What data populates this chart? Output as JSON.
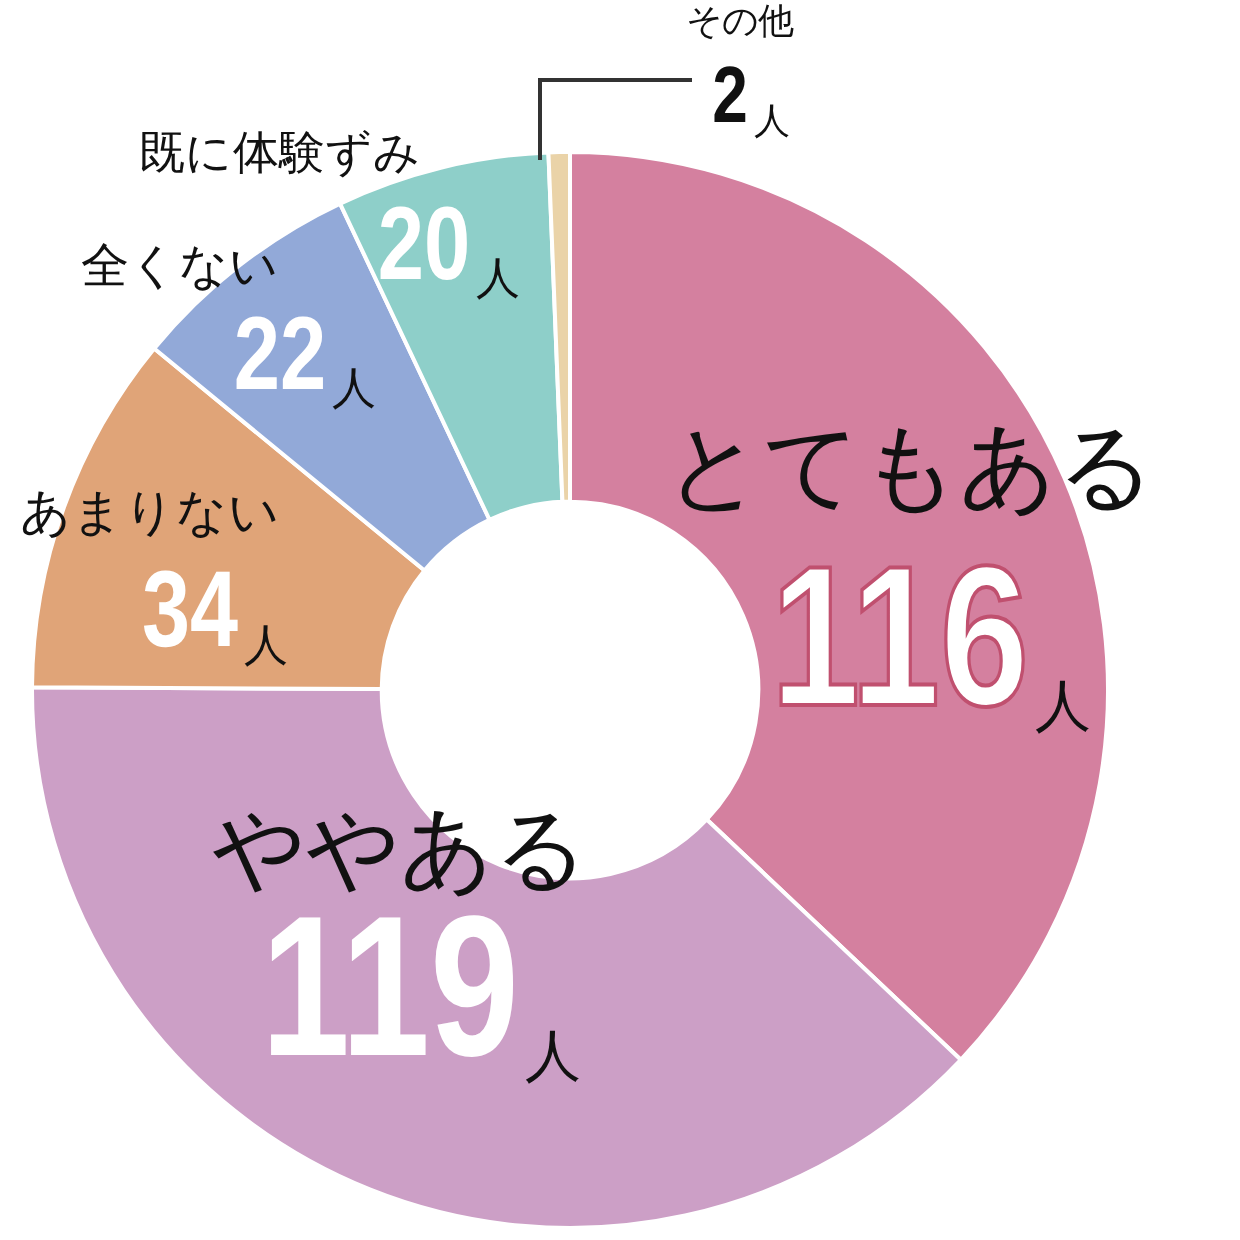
{
  "chart_data": {
    "type": "donut",
    "categories": [
      "とてもある",
      "ややある",
      "あまりない",
      "全くない",
      "既に体験ずみ",
      "その他"
    ],
    "values": [
      116,
      119,
      34,
      22,
      20,
      2
    ],
    "colors": [
      "#d4809f",
      "#cc9fc6",
      "#e0a478",
      "#92a9d8",
      "#8ecfc9",
      "#ead3a8"
    ],
    "value_labels": [
      "116人",
      "119人",
      "34人",
      "22人",
      "20人",
      "2人"
    ]
  }
}
